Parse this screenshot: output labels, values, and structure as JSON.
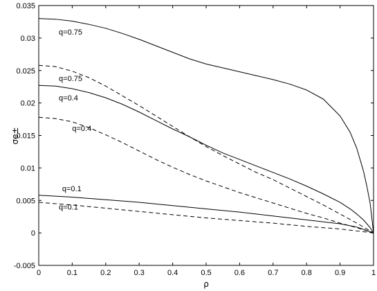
{
  "chart_data": {
    "type": "line",
    "xlabel": "ρ",
    "ylabel": "σe±",
    "xlim": [
      0,
      1
    ],
    "ylim": [
      -0.005,
      0.035
    ],
    "xticks": [
      "0",
      "0.1",
      "0.2",
      "0.3",
      "0.4",
      "0.5",
      "0.6",
      "0.7",
      "0.8",
      "0.9",
      "1"
    ],
    "yticks": [
      "-0.005",
      "0",
      "0.005",
      "0.01",
      "0.015",
      "0.02",
      "0.025",
      "0.03",
      "0.035"
    ],
    "grid": false,
    "series": [
      {
        "style": "solid",
        "x": [
          0,
          0.05,
          0.1,
          0.15,
          0.2,
          0.25,
          0.3,
          0.35,
          0.4,
          0.45,
          0.5,
          0.55,
          0.6,
          0.65,
          0.7,
          0.75,
          0.8,
          0.85,
          0.9,
          0.93,
          0.95,
          0.97,
          0.98,
          0.99,
          1.0
        ],
        "y": [
          0.033,
          0.0329,
          0.0326,
          0.0321,
          0.0315,
          0.0307,
          0.0298,
          0.0288,
          0.0278,
          0.0268,
          0.026,
          0.0254,
          0.0248,
          0.0242,
          0.0236,
          0.0229,
          0.022,
          0.0206,
          0.018,
          0.0155,
          0.013,
          0.0095,
          0.0072,
          0.0045,
          0.0
        ]
      },
      {
        "style": "dashed",
        "x": [
          0,
          0.05,
          0.1,
          0.15,
          0.2,
          0.25,
          0.3,
          0.35,
          0.4,
          0.45,
          0.5,
          0.55,
          0.6,
          0.65,
          0.7,
          0.75,
          0.8,
          0.85,
          0.9,
          0.95,
          1.0
        ],
        "y": [
          0.0258,
          0.0256,
          0.0249,
          0.0239,
          0.0226,
          0.0211,
          0.0196,
          0.018,
          0.0164,
          0.0148,
          0.0133,
          0.0119,
          0.0106,
          0.0093,
          0.0082,
          0.0069,
          0.0056,
          0.0043,
          0.0029,
          0.0015,
          0.0
        ]
      },
      {
        "style": "solid",
        "x": [
          0,
          0.05,
          0.1,
          0.15,
          0.2,
          0.25,
          0.3,
          0.35,
          0.4,
          0.45,
          0.5,
          0.55,
          0.6,
          0.65,
          0.7,
          0.75,
          0.8,
          0.85,
          0.9,
          0.93,
          0.95,
          0.97,
          0.99,
          1.0
        ],
        "y": [
          0.0227,
          0.0226,
          0.0222,
          0.0216,
          0.0208,
          0.0198,
          0.0186,
          0.0173,
          0.016,
          0.0148,
          0.0135,
          0.0123,
          0.0113,
          0.0103,
          0.0093,
          0.0083,
          0.0072,
          0.006,
          0.0047,
          0.0037,
          0.0029,
          0.002,
          0.0008,
          0.0
        ]
      },
      {
        "style": "dashed",
        "x": [
          0,
          0.05,
          0.1,
          0.15,
          0.2,
          0.25,
          0.3,
          0.35,
          0.4,
          0.45,
          0.5,
          0.55,
          0.6,
          0.65,
          0.7,
          0.75,
          0.8,
          0.85,
          0.9,
          0.95,
          1.0
        ],
        "y": [
          0.0178,
          0.0176,
          0.0171,
          0.0162,
          0.0151,
          0.0139,
          0.0126,
          0.0113,
          0.0101,
          0.009,
          0.008,
          0.0071,
          0.0062,
          0.0054,
          0.0046,
          0.0038,
          0.003,
          0.0023,
          0.0015,
          0.0008,
          0.0
        ]
      },
      {
        "style": "solid",
        "x": [
          0,
          0.1,
          0.2,
          0.3,
          0.4,
          0.5,
          0.6,
          0.7,
          0.8,
          0.9,
          0.95,
          1.0
        ],
        "y": [
          0.0058,
          0.0055,
          0.0051,
          0.0047,
          0.0042,
          0.0037,
          0.0032,
          0.0026,
          0.002,
          0.0014,
          0.0009,
          0.0
        ]
      },
      {
        "style": "dashed",
        "x": [
          0,
          0.1,
          0.2,
          0.3,
          0.4,
          0.5,
          0.6,
          0.7,
          0.8,
          0.9,
          0.95,
          1.0
        ],
        "y": [
          0.0047,
          0.0043,
          0.0038,
          0.0033,
          0.0028,
          0.0023,
          0.0019,
          0.0015,
          0.001,
          0.0006,
          0.0003,
          0.0
        ]
      }
    ],
    "annotations": [
      {
        "text": "q=0.75",
        "x": 0.06,
        "y": 0.0305
      },
      {
        "text": "q=0.75",
        "x": 0.06,
        "y": 0.0234
      },
      {
        "text": "q=0.4",
        "x": 0.06,
        "y": 0.0204
      },
      {
        "text": "q=0.4",
        "x": 0.1,
        "y": 0.0157
      },
      {
        "text": "q=0.1",
        "x": 0.07,
        "y": 0.0064
      },
      {
        "text": "q=0.1",
        "x": 0.06,
        "y": 0.0036
      }
    ]
  }
}
